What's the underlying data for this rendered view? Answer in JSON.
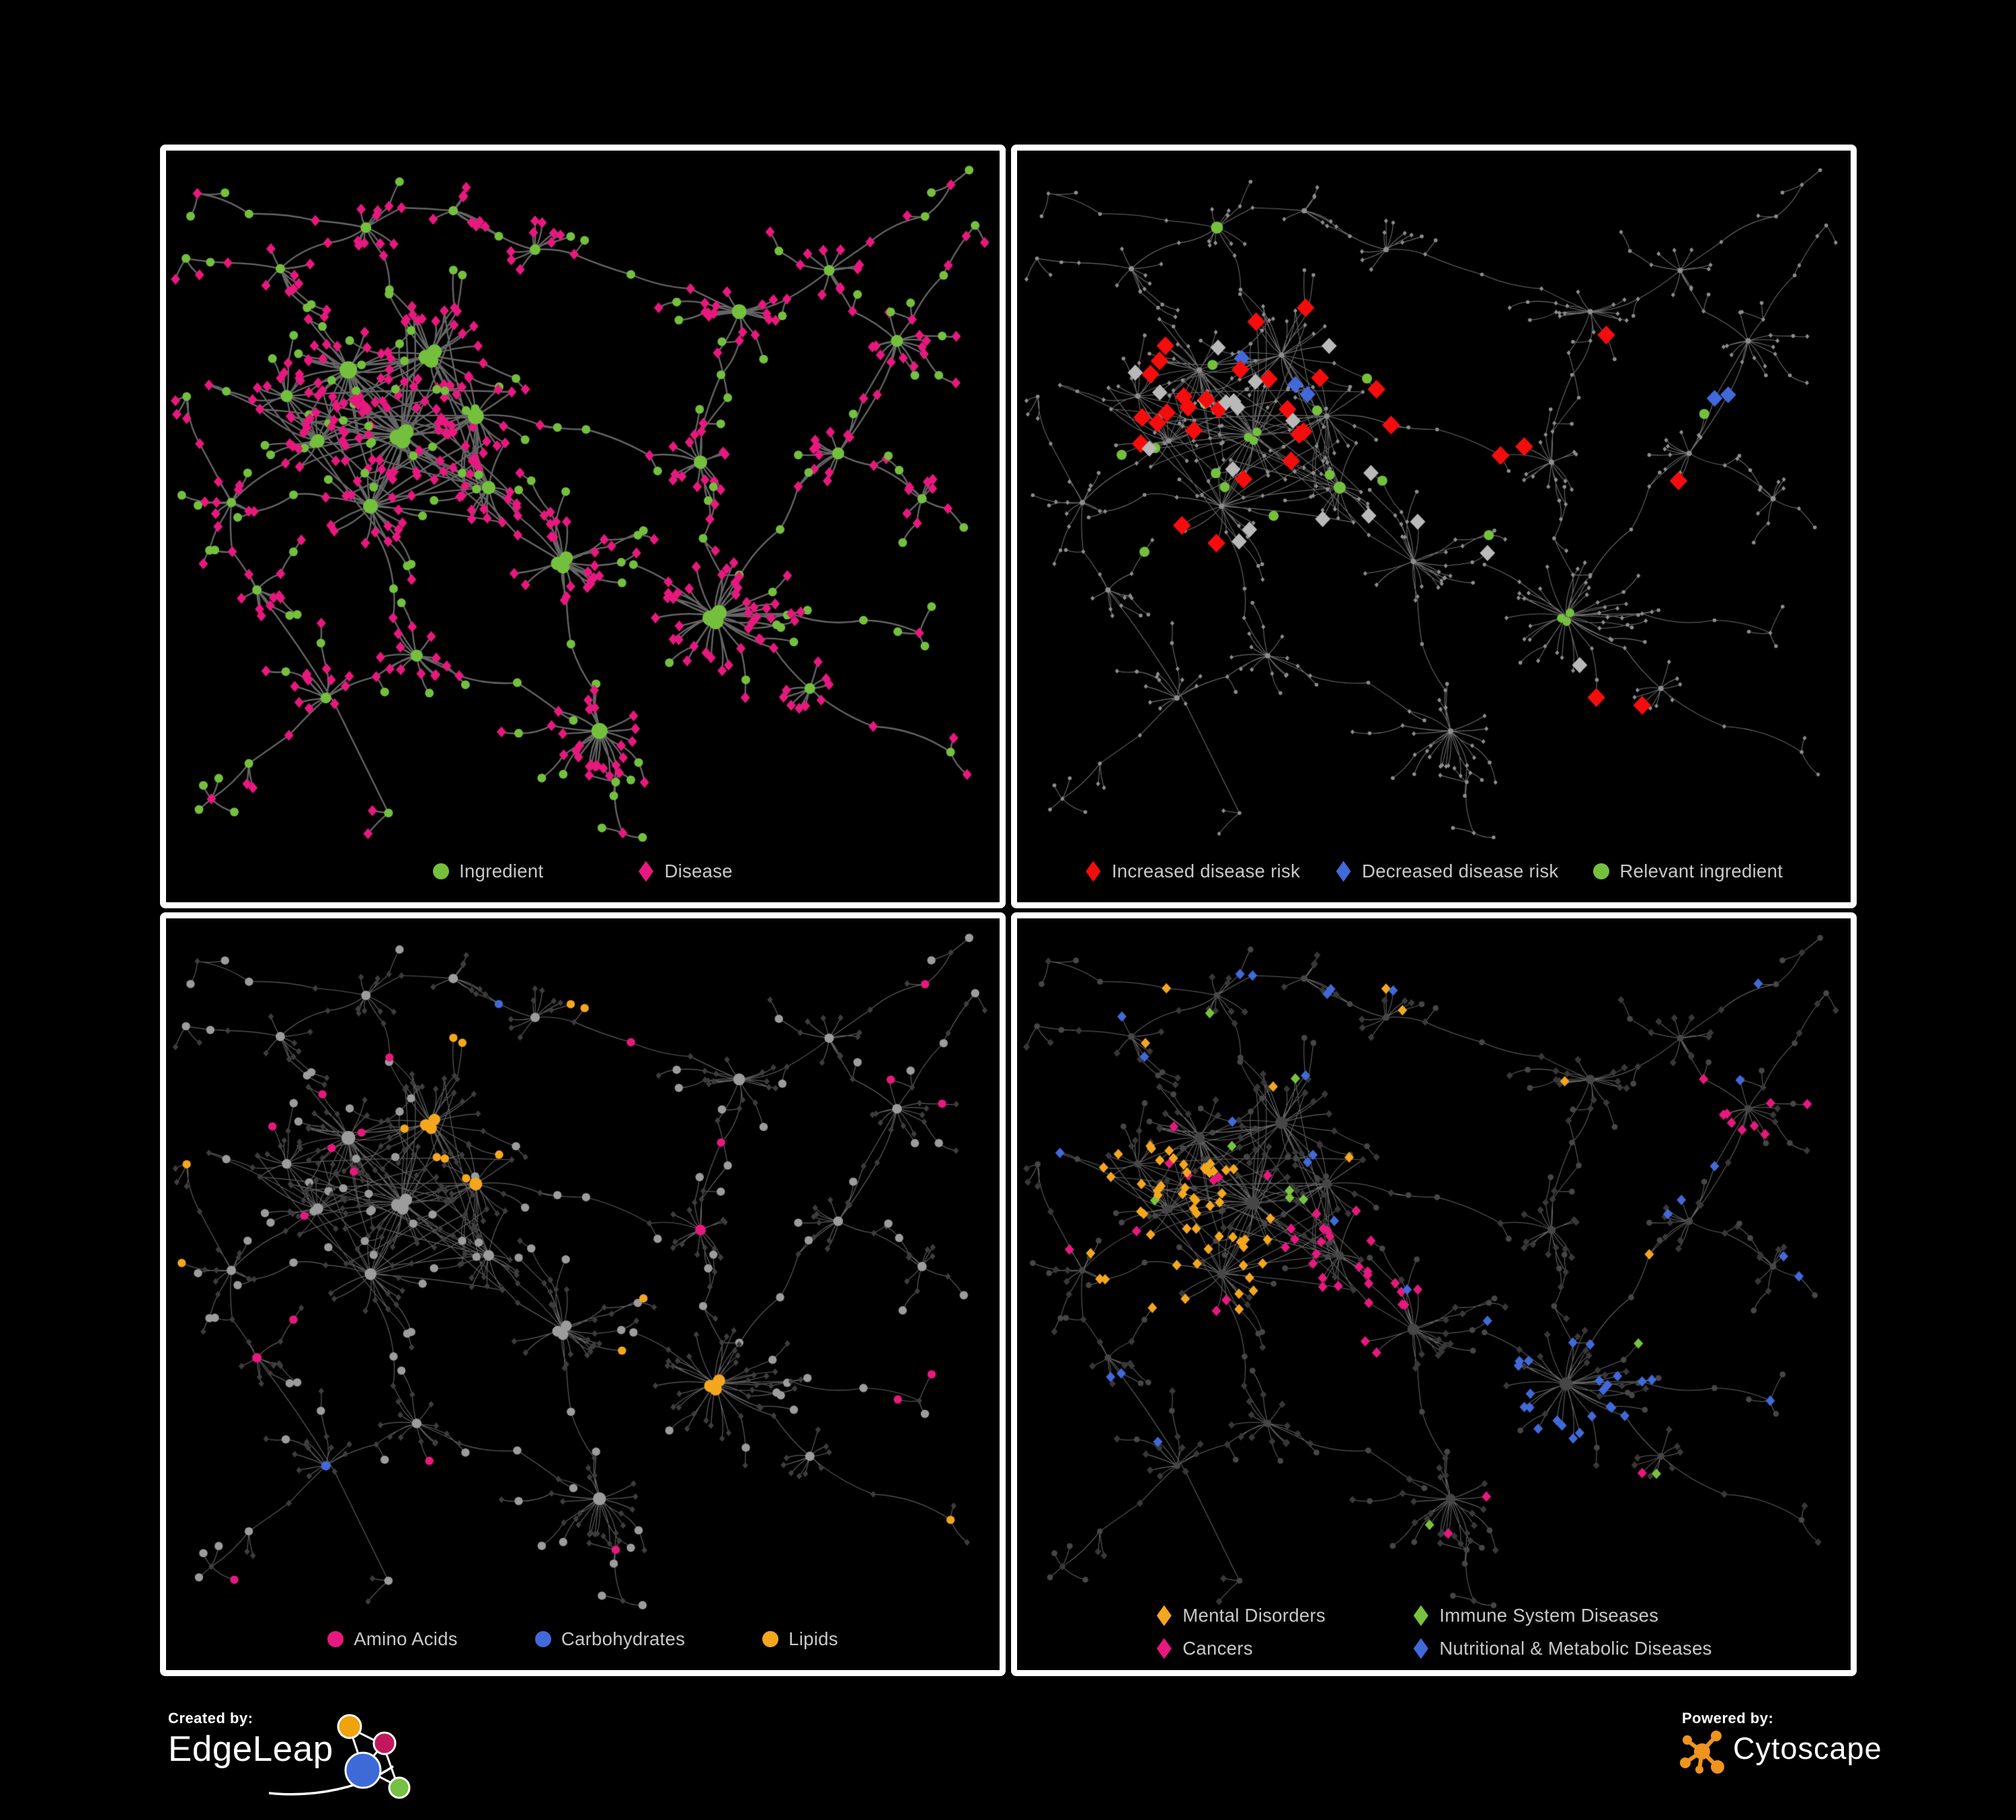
{
  "branding": {
    "created_by_label": "Created by:",
    "created_by_name": "EdgeLeap",
    "powered_by_label": "Powered by:",
    "powered_by_name": "Cytoscape",
    "edgeleap_logo_colors": {
      "orange": "#F0A30A",
      "magenta": "#C2185B",
      "blue": "#3E6AD8",
      "green": "#76C043"
    },
    "cytoscape_logo_color": "#F0941F"
  },
  "panels": [
    {
      "name": "ingredient-disease-network",
      "legend": [
        {
          "label": "Ingredient",
          "shape": "circle",
          "color": "#74C03C"
        },
        {
          "label": "Disease",
          "shape": "diamond",
          "color": "#E8187E"
        }
      ]
    },
    {
      "name": "disease-risk-network",
      "legend": [
        {
          "label": "Increased disease risk",
          "shape": "diamond",
          "color": "#F50D0D"
        },
        {
          "label": "Decreased disease risk",
          "shape": "diamond",
          "color": "#4169D9"
        },
        {
          "label": "Relevant ingredient",
          "shape": "circle",
          "color": "#74C03C"
        }
      ]
    },
    {
      "name": "nutrient-class-network",
      "legend": [
        {
          "label": "Amino Acids",
          "shape": "circle",
          "color": "#E8187E"
        },
        {
          "label": "Carbohydrates",
          "shape": "circle",
          "color": "#4169D9"
        },
        {
          "label": "Lipids",
          "shape": "circle",
          "color": "#F4A71E"
        }
      ]
    },
    {
      "name": "disease-class-network",
      "legend": [
        {
          "label": "Mental Disorders",
          "shape": "diamond",
          "color": "#F4A71E"
        },
        {
          "label": "Immune System Diseases",
          "shape": "diamond",
          "color": "#7AC23C"
        },
        {
          "label": "Cancers",
          "shape": "diamond",
          "color": "#E8187E"
        },
        {
          "label": "Nutritional & Metabolic Diseases",
          "shape": "diamond",
          "color": "#4169D9"
        }
      ]
    }
  ],
  "network_styles": {
    "green": "#74C03C",
    "pink": "#E8187E",
    "red": "#F50D0D",
    "blue": "#4169D9",
    "orange": "#F4A71E",
    "immune_green": "#7AC23C",
    "light_grey_diamond": "#B9B9B9",
    "tiny_grey_node": "#8D8D8D",
    "grey_circle": "#9C9C9C",
    "dark_diamond": "#3D3D3D",
    "dark_diamond_2": "#383838",
    "dark_circle": "#464646",
    "edge_panel1": "#6A6A6A",
    "edge_panel2": "#757575",
    "edge_panel3": "#A9A9A9",
    "edge_panel4": "#8E8E8E",
    "panel_background": "#000000",
    "panel_border": "#FFFFFF",
    "legend_text": "#C9C9C9"
  }
}
